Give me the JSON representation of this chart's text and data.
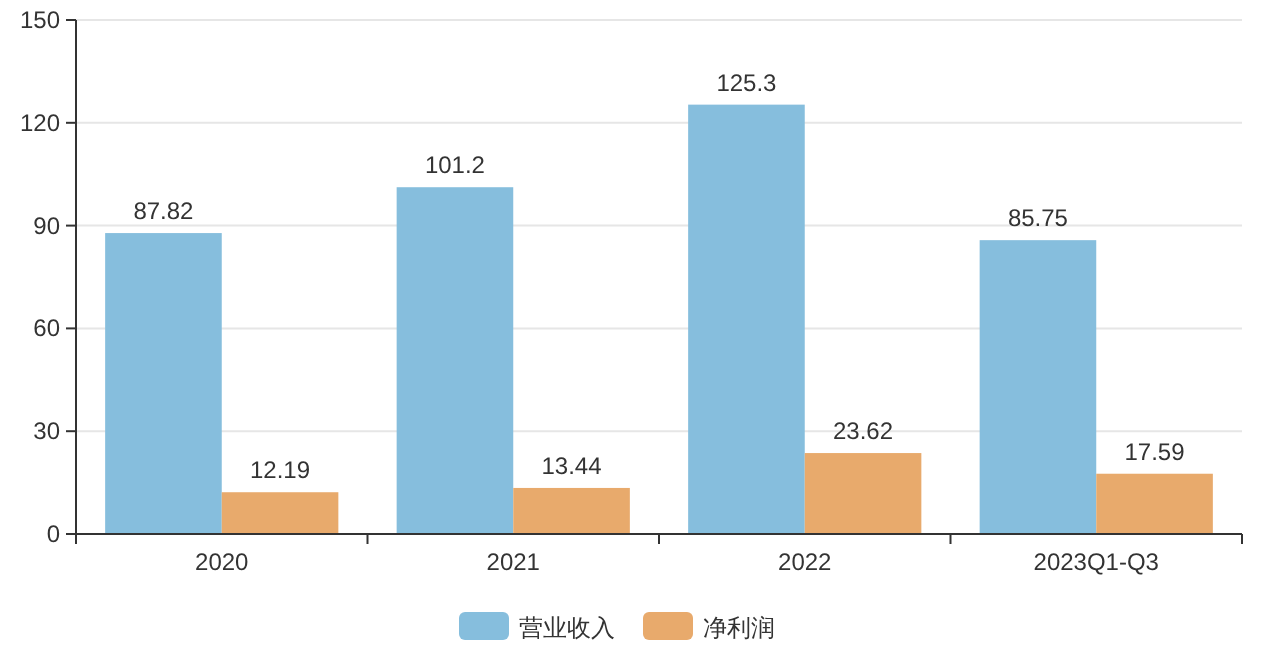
{
  "chart_data": {
    "type": "bar",
    "categories": [
      "2020",
      "2021",
      "2022",
      "2023Q1-Q3"
    ],
    "series": [
      {
        "name": "营业收入",
        "color": "#86bedd",
        "values": [
          87.82,
          101.2,
          125.3,
          85.75
        ]
      },
      {
        "name": "净利润",
        "color": "#e8aa6c",
        "values": [
          12.19,
          13.44,
          23.62,
          17.59
        ]
      }
    ],
    "ylim": [
      0,
      150
    ],
    "yticks": [
      0,
      30,
      60,
      90,
      120,
      150
    ],
    "grid": "y",
    "legend": "bottom",
    "data_labels": true
  }
}
